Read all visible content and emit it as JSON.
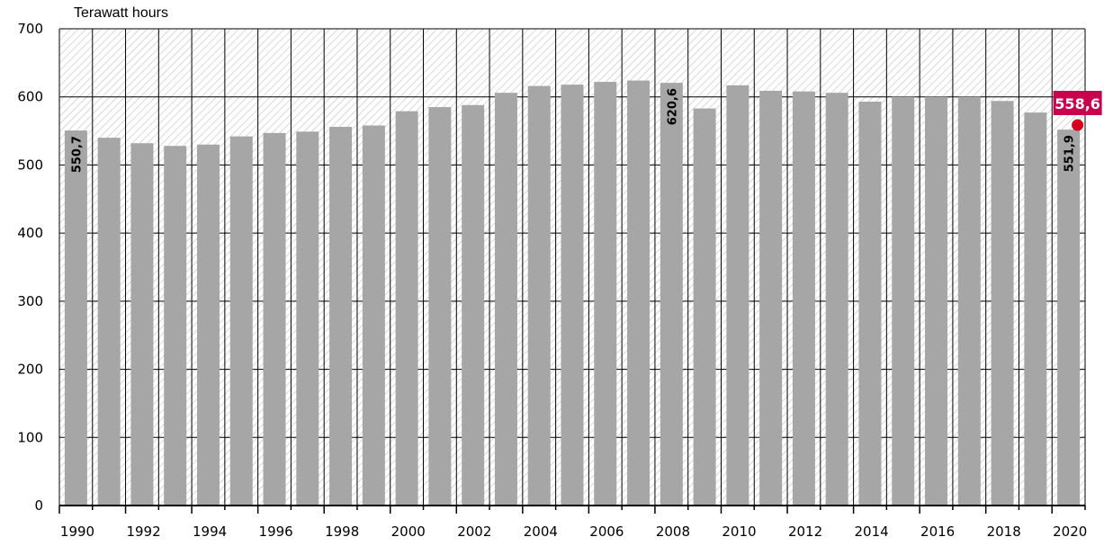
{
  "chart_data": {
    "type": "bar",
    "unit_label": "Terawatt hours",
    "ylim": [
      0,
      700
    ],
    "yticks": [
      0,
      100,
      200,
      300,
      400,
      500,
      600,
      700
    ],
    "grid": true,
    "categories": [
      "1990",
      "1991",
      "1992",
      "1993",
      "1994",
      "1995",
      "1996",
      "1997",
      "1998",
      "1999",
      "2000",
      "2001",
      "2002",
      "2003",
      "2004",
      "2005",
      "2006",
      "2007",
      "2008",
      "2009",
      "2010",
      "2011",
      "2012",
      "2013",
      "2014",
      "2015",
      "2016",
      "2017",
      "2018",
      "2019",
      "2020"
    ],
    "values": [
      550.7,
      540,
      532,
      528,
      530,
      542,
      547,
      549,
      556,
      558,
      579,
      585,
      588,
      606,
      616,
      618,
      622,
      624,
      620.6,
      583,
      617,
      609,
      608,
      606,
      593,
      600,
      600,
      600,
      594,
      577,
      551.9
    ],
    "xtick_labels": [
      "1990",
      "1992",
      "1994",
      "1996",
      "1998",
      "2000",
      "2002",
      "2004",
      "2006",
      "2008",
      "2010",
      "2012",
      "2014",
      "2016",
      "2018",
      "2020"
    ],
    "data_labels": [
      {
        "category": "1990",
        "text": "550,7"
      },
      {
        "category": "2008",
        "text": "620,6"
      },
      {
        "category": "2020",
        "text": "551,9"
      }
    ],
    "highlight": {
      "category": "2020",
      "value": 558.6,
      "text": "558,6",
      "color": "#c8004d",
      "marker_color": "#d4001e"
    },
    "colors": {
      "bar": "#a6a6a6",
      "hatch_line": "#c8c8c8",
      "grid": "#000000"
    }
  }
}
